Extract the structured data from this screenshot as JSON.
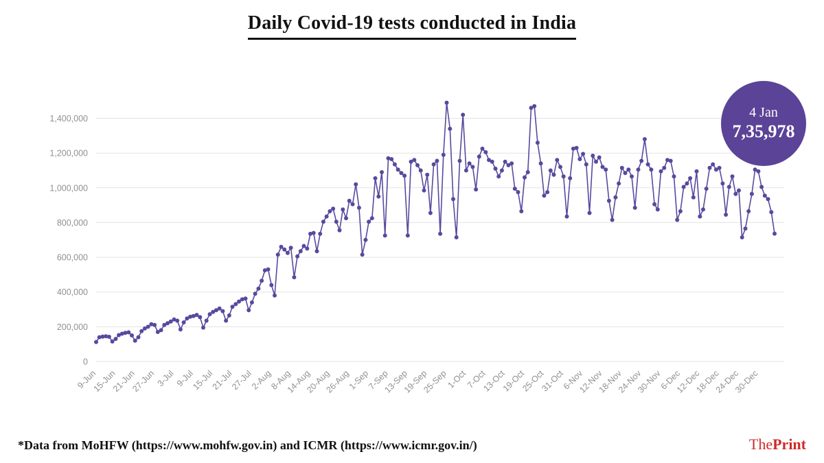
{
  "title": "Daily Covid-19 tests conducted in India",
  "badge": {
    "date": "4 Jan",
    "value": "7,35,978"
  },
  "footer": {
    "source_note": "*Data from MoHFW (https://www.mohfw.gov.in) and ICMR (https://www.icmr.gov.in/)",
    "brand_the": "The",
    "brand_print": "Print"
  },
  "colors": {
    "line": "#564a9e",
    "badge": "#5b4397",
    "brand_red": "#d02a2a",
    "grid": "#e3e3e3",
    "axis_label": "#909090"
  },
  "chart_data": {
    "type": "line",
    "title": "Daily Covid-19 tests conducted in India",
    "xlabel": "",
    "ylabel": "",
    "ylim": [
      0,
      1560000
    ],
    "grid": "horizontal",
    "markers": true,
    "line_color": "#564a9e",
    "y_ticks": [
      0,
      200000,
      400000,
      600000,
      800000,
      1000000,
      1200000,
      1400000
    ],
    "y_tick_labels": [
      "0",
      "200,000",
      "400,000",
      "600,000",
      "800,000",
      "1,000,000",
      "1,200,000",
      "1,400,000"
    ],
    "x_tick_every": 6,
    "x_tick_labels": [
      "9-Jun",
      "15-Jun",
      "21-Jun",
      "27-Jun",
      "3-Jul",
      "9-Jul",
      "15-Jul",
      "21-Jul",
      "27-Jul",
      "2-Aug",
      "8-Aug",
      "14-Aug",
      "20-Aug",
      "26-Aug",
      "1-Sep",
      "7-Sep",
      "13-Sep",
      "19-Sep",
      "25-Sep",
      "1-Oct",
      "7-Oct",
      "13-Oct",
      "19-Oct",
      "25-Oct",
      "31-Oct",
      "6-Nov",
      "12-Nov",
      "18-Nov",
      "24-Nov",
      "30-Nov",
      "6-Dec",
      "12-Dec",
      "18-Dec",
      "24-Dec",
      "30-Dec"
    ],
    "x_start_label": "9-Jun",
    "x_end_label": "4-Jan",
    "values": [
      112000,
      140000,
      143000,
      145000,
      142000,
      115000,
      130000,
      152000,
      160000,
      165000,
      168000,
      150000,
      120000,
      140000,
      175000,
      190000,
      200000,
      215000,
      210000,
      170000,
      180000,
      210000,
      220000,
      230000,
      242000,
      235000,
      185000,
      225000,
      248000,
      258000,
      262000,
      268000,
      255000,
      195000,
      235000,
      272000,
      285000,
      295000,
      305000,
      290000,
      235000,
      265000,
      315000,
      330000,
      345000,
      358000,
      362000,
      295000,
      340000,
      390000,
      420000,
      465000,
      525000,
      530000,
      440000,
      380000,
      615000,
      660000,
      645000,
      625000,
      655000,
      485000,
      605000,
      635000,
      665000,
      650000,
      735000,
      740000,
      635000,
      735000,
      805000,
      835000,
      865000,
      880000,
      805000,
      755000,
      875000,
      825000,
      925000,
      905000,
      1020000,
      885000,
      615000,
      700000,
      805000,
      825000,
      1055000,
      950000,
      1090000,
      725000,
      1170000,
      1165000,
      1135000,
      1105000,
      1085000,
      1070000,
      725000,
      1150000,
      1160000,
      1130000,
      1100000,
      985000,
      1075000,
      855000,
      1135000,
      1155000,
      735000,
      1190000,
      1490000,
      1340000,
      935000,
      715000,
      1155000,
      1420000,
      1100000,
      1140000,
      1120000,
      990000,
      1180000,
      1225000,
      1205000,
      1160000,
      1150000,
      1110000,
      1065000,
      1100000,
      1150000,
      1130000,
      1140000,
      995000,
      975000,
      865000,
      1060000,
      1090000,
      1460000,
      1470000,
      1260000,
      1140000,
      955000,
      975000,
      1100000,
      1075000,
      1160000,
      1120000,
      1065000,
      835000,
      1055000,
      1225000,
      1230000,
      1165000,
      1195000,
      1135000,
      855000,
      1185000,
      1150000,
      1175000,
      1120000,
      1105000,
      925000,
      815000,
      945000,
      1025000,
      1115000,
      1085000,
      1105000,
      1065000,
      885000,
      1105000,
      1155000,
      1280000,
      1135000,
      1105000,
      905000,
      875000,
      1095000,
      1115000,
      1160000,
      1155000,
      1065000,
      815000,
      865000,
      1005000,
      1025000,
      1055000,
      945000,
      1095000,
      835000,
      875000,
      995000,
      1115000,
      1135000,
      1105000,
      1115000,
      1025000,
      845000,
      1005000,
      1065000,
      965000,
      985000,
      715000,
      765000,
      865000,
      965000,
      1105000,
      1095000,
      1005000,
      955000,
      935000,
      860000,
      735978
    ]
  }
}
